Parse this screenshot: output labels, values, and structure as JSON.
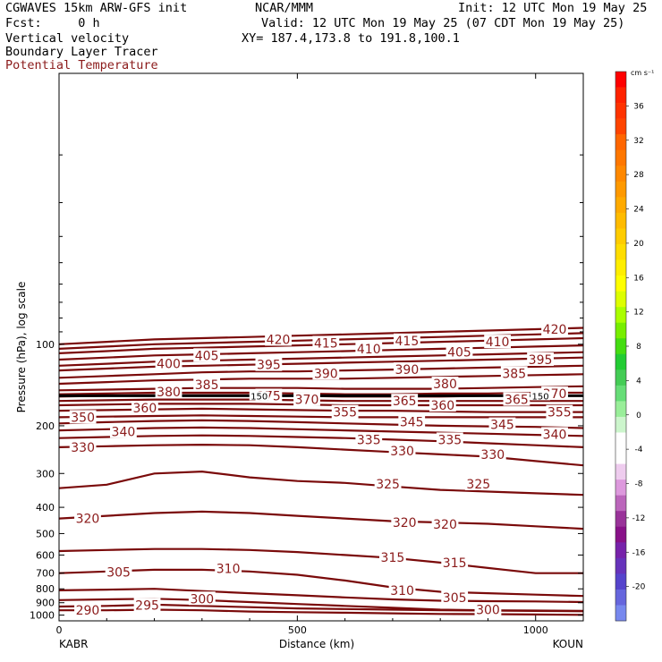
{
  "header": {
    "model": "CGWAVES 15km ARW-GFS init",
    "org": "NCAR/MMM",
    "init": "Init: 12 UTC Mon 19 May 25",
    "fcst": "Fcst:     0 h",
    "valid": "Valid: 12 UTC Mon 19 May 25 (07 CDT Mon 19 May 25)",
    "field1": "Vertical velocity",
    "xy": "XY= 187.4,173.8 to 191.8,100.1",
    "field2": "Boundary Layer Tracer",
    "field3": "Potential Temperature"
  },
  "colors": {
    "contour": "#7a0a0a",
    "potential_temperature_label": "#8b1a1a",
    "tropopause_line": "#000000"
  },
  "chart_data": {
    "type": "line",
    "subtype": "cross-section contour (potential temperature, K)",
    "xlabel": "Distance (km)",
    "ylabel": "Pressure (hPa), log scale",
    "xlim": [
      0,
      1100
    ],
    "x_ticks": [
      "0",
      "500",
      "1000"
    ],
    "x_tick_values": [
      0,
      500,
      1000
    ],
    "y_scale": "log",
    "ylim": [
      1050,
      10
    ],
    "y_ticks": [
      "100",
      "200",
      "300",
      "400",
      "500",
      "600",
      "700",
      "800",
      "900",
      "1000"
    ],
    "y_tick_values": [
      100,
      200,
      300,
      400,
      500,
      600,
      700,
      800,
      900,
      1000
    ],
    "endpoint_left": "KABR",
    "endpoint_right": "KOUN",
    "x_sample": [
      0,
      100,
      200,
      300,
      400,
      500,
      600,
      700,
      800,
      900,
      1000,
      1100
    ],
    "contours": [
      {
        "value": 290,
        "label": "290",
        "p": [
          960,
          960,
          955,
          960,
          970,
          975,
          980,
          985,
          990,
          992,
          995,
          998
        ],
        "label_x": 60,
        "label_p": 958
      },
      {
        "value": 295,
        "label": "295",
        "p": [
          930,
          925,
          915,
          925,
          935,
          945,
          950,
          955,
          960,
          962,
          965,
          968
        ],
        "label_x": 185,
        "label_p": 918
      },
      {
        "value": 300,
        "label": "300",
        "p": [
          880,
          875,
          870,
          880,
          895,
          910,
          925,
          940,
          955,
          960,
          962,
          965
        ],
        "label_x": 300,
        "label_p": 870,
        "extra_labels": [
          {
            "text": "300",
            "x": 900,
            "p": 955
          }
        ]
      },
      {
        "value": 305,
        "label": "305",
        "p": [
          810,
          805,
          800,
          815,
          830,
          845,
          860,
          875,
          885,
          888,
          890,
          895
        ],
        "label_x": 125,
        "label_p": 695,
        "extra_labels": [
          {
            "text": "305",
            "x": 830,
            "p": 862
          }
        ]
      },
      {
        "value": 310,
        "label": "310",
        "p": [
          700,
          690,
          680,
          680,
          690,
          710,
          745,
          790,
          820,
          830,
          840,
          850
        ],
        "label_x": 355,
        "label_p": 672,
        "extra_labels": [
          {
            "text": "310",
            "x": 720,
            "p": 810
          }
        ]
      },
      {
        "value": 315,
        "label": "315",
        "p": [
          580,
          575,
          570,
          570,
          575,
          585,
          600,
          615,
          640,
          670,
          700,
          700
        ],
        "label_x": 700,
        "label_p": 612,
        "extra_labels": [
          {
            "text": "315",
            "x": 830,
            "p": 640
          }
        ]
      },
      {
        "value": 320,
        "label": "320",
        "p": [
          440,
          430,
          420,
          415,
          420,
          430,
          440,
          450,
          455,
          460,
          470,
          480
        ],
        "label_x": 60,
        "label_p": 440,
        "extra_labels": [
          {
            "text": "320",
            "x": 725,
            "p": 455
          },
          {
            "text": "320",
            "x": 810,
            "p": 462
          }
        ]
      },
      {
        "value": 325,
        "label": "325",
        "p": [
          340,
          330,
          300,
          295,
          310,
          320,
          325,
          335,
          345,
          350,
          355,
          360
        ],
        "label_x": 690,
        "label_p": 328,
        "extra_labels": [
          {
            "text": "325",
            "x": 880,
            "p": 328
          }
        ]
      },
      {
        "value": 330,
        "label": "330",
        "p": [
          240,
          238,
          236,
          235,
          236,
          240,
          245,
          250,
          255,
          260,
          270,
          280
        ],
        "label_x": 50,
        "label_p": 240,
        "extra_labels": [
          {
            "text": "330",
            "x": 720,
            "p": 248
          },
          {
            "text": "330",
            "x": 910,
            "p": 255
          }
        ]
      },
      {
        "value": 335,
        "label": "335",
        "p": [
          222,
          220,
          218,
          217,
          218,
          220,
          222,
          225,
          228,
          232,
          236,
          240
        ],
        "label_x": 650,
        "label_p": 225,
        "extra_labels": [
          {
            "text": "335",
            "x": 820,
            "p": 225
          }
        ]
      },
      {
        "value": 340,
        "label": "340",
        "p": [
          208,
          206,
          204,
          203,
          204,
          206,
          208,
          210,
          212,
          214,
          216,
          218
        ],
        "label_x": 135,
        "label_p": 210,
        "extra_labels": [
          {
            "text": "340",
            "x": 1040,
            "p": 215
          }
        ]
      },
      {
        "value": 345,
        "label": "345",
        "p": [
          196,
          194,
          192,
          191,
          192,
          194,
          196,
          198,
          200,
          201,
          202,
          204
        ],
        "label_x": 740,
        "label_p": 193,
        "extra_labels": [
          {
            "text": "345",
            "x": 930,
            "p": 198
          }
        ]
      },
      {
        "value": 350,
        "label": "350",
        "p": [
          186,
          185,
          184,
          183,
          184,
          185,
          186,
          186,
          186,
          186,
          186,
          186
        ],
        "label_x": 50,
        "label_p": 186
      },
      {
        "value": 355,
        "label": "355",
        "p": [
          176,
          175,
          174,
          173,
          174,
          175,
          176,
          176,
          177,
          178,
          178,
          178
        ],
        "label_x": 600,
        "label_p": 178,
        "extra_labels": [
          {
            "text": "355",
            "x": 1050,
            "p": 178
          }
        ]
      },
      {
        "value": 360,
        "label": "360",
        "p": [
          168,
          167,
          166,
          166,
          166,
          167,
          168,
          168,
          168,
          168,
          168,
          168
        ],
        "label_x": 180,
        "label_p": 172,
        "extra_labels": [
          {
            "text": "360",
            "x": 805,
            "p": 168
          }
        ]
      },
      {
        "value": 365,
        "label": "365",
        "p": [
          162,
          161,
          160,
          160,
          160,
          161,
          162,
          162,
          162,
          162,
          162,
          162
        ],
        "label_x": 725,
        "label_p": 162,
        "extra_labels": [
          {
            "text": "365",
            "x": 960,
            "p": 160
          }
        ]
      },
      {
        "value": 370,
        "label": "370",
        "p": [
          156,
          155,
          154,
          154,
          154,
          155,
          156,
          156,
          156,
          155,
          155,
          155
        ],
        "label_x": 520,
        "label_p": 160,
        "extra_labels": [
          {
            "text": "370",
            "x": 1040,
            "p": 152
          }
        ]
      },
      {
        "value": 375,
        "label": "375",
        "p": [
          153,
          152,
          151,
          151,
          151,
          152,
          153,
          153,
          152,
          152,
          151,
          151
        ],
        "label_x": 440,
        "label_p": 155
      },
      {
        "value": 380,
        "label": "380",
        "p": [
          148,
          147,
          146,
          145,
          145,
          145,
          146,
          146,
          146,
          145,
          144,
          143
        ],
        "label_x": 230,
        "label_p": 150,
        "extra_labels": [
          {
            "text": "380",
            "x": 810,
            "p": 140
          }
        ]
      },
      {
        "value": 385,
        "label": "385",
        "p": [
          140,
          138,
          136,
          135,
          134,
          134,
          134,
          133,
          132,
          131,
          130,
          129
        ],
        "label_x": 310,
        "label_p": 141,
        "extra_labels": [
          {
            "text": "385",
            "x": 955,
            "p": 128
          }
        ]
      },
      {
        "value": 390,
        "label": "390",
        "p": [
          133,
          131,
          129,
          127,
          126,
          126,
          125,
          124,
          123,
          122,
          121,
          120
        ],
        "label_x": 560,
        "label_p": 128,
        "extra_labels": [
          {
            "text": "390",
            "x": 730,
            "p": 124
          }
        ]
      },
      {
        "value": 395,
        "label": "395",
        "p": [
          125,
          123,
          121,
          120,
          119,
          118,
          117,
          116,
          115,
          114,
          113,
          112
        ],
        "label_x": 440,
        "label_p": 119,
        "extra_labels": [
          {
            "text": "395",
            "x": 1010,
            "p": 114
          }
        ]
      },
      {
        "value": 400,
        "label": "400",
        "p": [
          120,
          118,
          116,
          115,
          114,
          113,
          112,
          111,
          110,
          109,
          108,
          107
        ],
        "label_x": 230,
        "label_p": 118
      },
      {
        "value": 405,
        "label": "405",
        "p": [
          114,
          112,
          110,
          109,
          108,
          107,
          106,
          105,
          104,
          103,
          102,
          101
        ],
        "label_x": 310,
        "label_p": 110,
        "extra_labels": [
          {
            "text": "405",
            "x": 840,
            "p": 107
          }
        ]
      },
      {
        "value": 410,
        "label": "410",
        "p": [
          108,
          106,
          104,
          103,
          102,
          101,
          100,
          99,
          98,
          97,
          96,
          95
        ],
        "label_x": 650,
        "label_p": 104,
        "extra_labels": [
          {
            "text": "410",
            "x": 920,
            "p": 98
          }
        ]
      },
      {
        "value": 415,
        "label": "415",
        "p": [
          104,
          102,
          100,
          99,
          98,
          97,
          96,
          95,
          94,
          93,
          92,
          91
        ],
        "label_x": 560,
        "label_p": 99,
        "extra_labels": [
          {
            "text": "415",
            "x": 730,
            "p": 97
          }
        ]
      },
      {
        "value": 420,
        "label": "420",
        "p": [
          100,
          98,
          96,
          95,
          94,
          93,
          92,
          91,
          90,
          89,
          88,
          87
        ],
        "label_x": 460,
        "label_p": 96,
        "extra_labels": [
          {
            "text": "420",
            "x": 1040,
            "p": 88
          }
        ]
      }
    ],
    "thick_line": {
      "label": "150",
      "p": 155,
      "label_positions": [
        {
          "text": "150",
          "x": 420
        },
        {
          "text": "150",
          "x": 1010
        }
      ]
    },
    "colorbar": {
      "units": "cm s⁻¹",
      "labels": [
        "36",
        "32",
        "28",
        "24",
        "20",
        "16",
        "12",
        "8",
        "4",
        "0",
        "-4",
        "-8",
        "-12",
        "-16",
        "-20"
      ],
      "label_values": [
        36,
        32,
        28,
        24,
        20,
        16,
        12,
        8,
        4,
        0,
        -4,
        -8,
        -12,
        -16,
        -20
      ],
      "segment_colors": [
        "#ff0000",
        "#ff2200",
        "#ff3300",
        "#ff4400",
        "#ff6600",
        "#ff7700",
        "#ff8800",
        "#ff9900",
        "#ffaa00",
        "#ffbb00",
        "#ffcc00",
        "#ffdd00",
        "#ffee00",
        "#ffff00",
        "#ddff00",
        "#aaff00",
        "#77ee00",
        "#44dd11",
        "#22cc33",
        "#44cc55",
        "#66dd77",
        "#99ee99",
        "#ccf5cc",
        "#ffffff",
        "#ffffff",
        "#eeccee",
        "#dd99dd",
        "#bb66bb",
        "#993399",
        "#881188",
        "#7722aa",
        "#6633bb",
        "#5544cc",
        "#6666dd",
        "#7788ee"
      ]
    }
  }
}
